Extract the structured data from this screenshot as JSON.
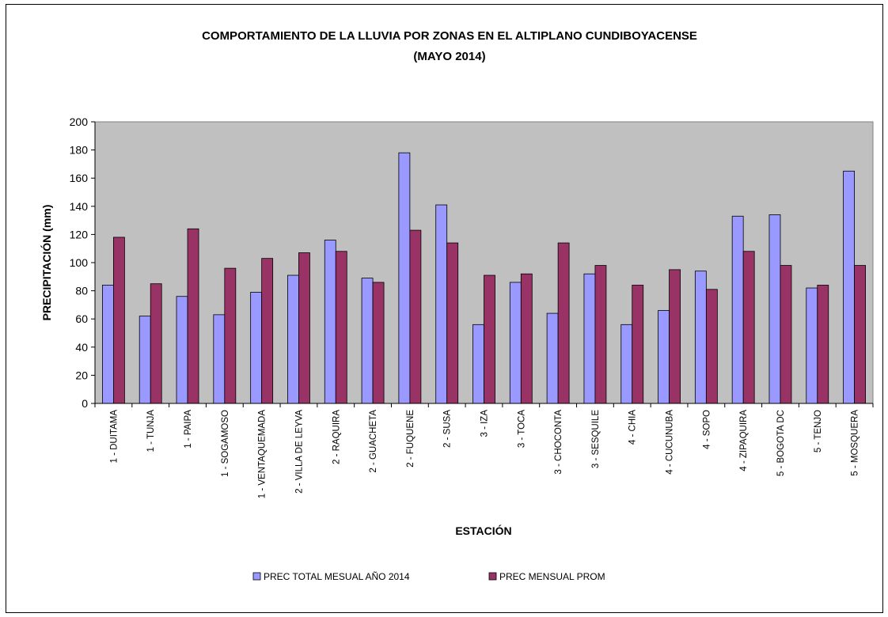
{
  "chart_data": {
    "type": "bar",
    "title": "COMPORTAMIENTO DE LA LLUVIA POR ZONAS EN EL ALTIPLANO CUNDIBOYACENSE",
    "subtitle": "(MAYO 2014)",
    "xlabel": "ESTACIÓN",
    "ylabel": "PRECIPITACIÓN (mm)",
    "ylim": [
      0,
      200
    ],
    "yticks": [
      0,
      20,
      40,
      60,
      80,
      100,
      120,
      140,
      160,
      180,
      200
    ],
    "grid": false,
    "legend_position": "bottom",
    "plot_background": "#c0c0c0",
    "categories": [
      "1 - DUITAMA",
      "1 - TUNJA",
      "1 - PAIPA",
      "1 - SOGAMOSO",
      "1 - VENTAQUEMADA",
      "2 - VILLA DE LEYVA",
      "2 - RAQUIRA",
      "2 - GUACHETA",
      "2 - FUQUENE",
      "2 - SUSA",
      "3 - IZA",
      "3 - TOCA",
      "3 - CHOCONTA",
      "3 - SESQUILE",
      "4 - CHIA",
      "4 - CUCUNUBA",
      "4 - SOPO",
      "4 - ZIPAQUIRA",
      "5 - BOGOTA DC",
      "5 - TENJO",
      "5 - MOSQUERA"
    ],
    "series": [
      {
        "name": "PREC TOTAL MESUAL AÑO 2014",
        "color": "#9999ff",
        "values": [
          84,
          62,
          76,
          63,
          79,
          91,
          116,
          89,
          178,
          141,
          56,
          86,
          64,
          92,
          56,
          66,
          94,
          133,
          134,
          82,
          165
        ]
      },
      {
        "name": "PREC MENSUAL PROM",
        "color": "#993366",
        "values": [
          118,
          85,
          124,
          96,
          103,
          107,
          108,
          86,
          123,
          114,
          91,
          92,
          114,
          98,
          84,
          95,
          81,
          108,
          98,
          84,
          98
        ]
      }
    ]
  }
}
